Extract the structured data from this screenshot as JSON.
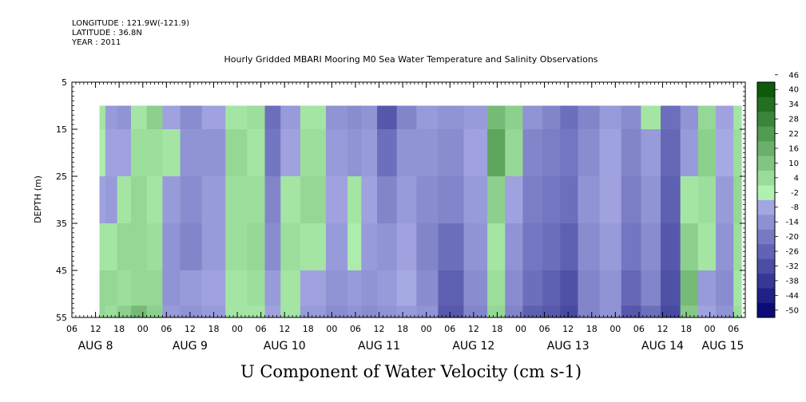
{
  "header": {
    "longitude": "LONGITUDE : 121.9W(-121.9)",
    "latitude": "LATITUDE : 36.8N",
    "year": "YEAR : 2011"
  },
  "title": "Hourly Gridded MBARI Mooring M0 Sea Water Temperature and Salinity Observations",
  "xlabel": "U Component of Water Velocity (cm s-1)",
  "colors": {
    "negative_deep": "#000070",
    "negative_light": "#b8bcf0",
    "positive_light": "#b0f0b0",
    "positive_deep": "#005000"
  },
  "chart_data": {
    "type": "heatmap",
    "variable": "U Component of Water Velocity",
    "units": "cm s-1",
    "ylabel": "DEPTH (m)",
    "y_axis": {
      "range": [
        5,
        55
      ],
      "reversed": true,
      "ticks": [
        5,
        15,
        25,
        35,
        45,
        55
      ],
      "data_depth_range": [
        10,
        55
      ]
    },
    "x_axis": {
      "start": "2011-08-08 06:00",
      "end": "2011-08-15 09:00",
      "data_start": "2011-08-08 13:00",
      "data_end": "2011-08-15 08:00",
      "hour_tick_labels": [
        "06",
        "12",
        "18",
        "00",
        "06",
        "12",
        "18",
        "00",
        "06",
        "12",
        "18",
        "00",
        "06",
        "12",
        "18",
        "00",
        "06",
        "12",
        "18",
        "00",
        "06",
        "12",
        "18",
        "00",
        "06",
        "12",
        "18",
        "00",
        "06"
      ],
      "day_labels": [
        {
          "label": "AUG  8",
          "date": "2011-08-08"
        },
        {
          "label": "AUG  9",
          "date": "2011-08-09"
        },
        {
          "label": "AUG 10",
          "date": "2011-08-10"
        },
        {
          "label": "AUG 11",
          "date": "2011-08-11"
        },
        {
          "label": "AUG 12",
          "date": "2011-08-12"
        },
        {
          "label": "AUG 13",
          "date": "2011-08-13"
        },
        {
          "label": "AUG 14",
          "date": "2011-08-14"
        },
        {
          "label": "AUG 15",
          "date": "2011-08-15"
        }
      ]
    },
    "colorbar": {
      "levels": [
        -50,
        -44,
        -38,
        -32,
        -26,
        -20,
        -14,
        -8,
        -2,
        4,
        10,
        16,
        22,
        28,
        34,
        40,
        46
      ],
      "label_ticks": [
        -50,
        -44,
        -38,
        -32,
        -26,
        -20,
        -14,
        -8,
        -2,
        4,
        10,
        16,
        22,
        28,
        34,
        40,
        46
      ]
    },
    "profile_times": [
      "2011-08-08 13:00",
      "2011-08-08 16:00",
      "2011-08-08 19:00",
      "2011-08-08 23:00",
      "2011-08-09 03:00",
      "2011-08-09 07:00",
      "2011-08-09 12:00",
      "2011-08-09 18:00",
      "2011-08-10 00:00",
      "2011-08-10 05:00",
      "2011-08-10 09:00",
      "2011-08-10 13:00",
      "2011-08-10 19:00",
      "2011-08-11 02:00",
      "2011-08-11 06:00",
      "2011-08-11 09:00",
      "2011-08-11 14:00",
      "2011-08-11 19:00",
      "2011-08-12 00:00",
      "2011-08-12 06:00",
      "2011-08-12 13:00",
      "2011-08-12 18:00",
      "2011-08-12 22:00",
      "2011-08-13 03:00",
      "2011-08-13 08:00",
      "2011-08-13 12:00",
      "2011-08-13 17:00",
      "2011-08-13 23:00",
      "2011-08-14 04:00",
      "2011-08-14 09:00",
      "2011-08-14 14:00",
      "2011-08-14 19:00",
      "2011-08-14 23:00",
      "2011-08-15 04:00",
      "2011-08-15 08:00"
    ],
    "profile_depths": [
      10,
      20,
      30,
      40,
      50,
      55
    ],
    "u_estimates": [
      [
        4,
        2,
        -6,
        4,
        8,
        8
      ],
      [
        -8,
        -6,
        -8,
        4,
        8,
        6
      ],
      [
        -10,
        -6,
        4,
        8,
        6,
        10
      ],
      [
        4,
        6,
        8,
        8,
        8,
        16
      ],
      [
        10,
        6,
        4,
        6,
        8,
        10
      ],
      [
        -6,
        4,
        -8,
        -10,
        -10,
        -8
      ],
      [
        -12,
        -10,
        -12,
        -14,
        -8,
        -10
      ],
      [
        -6,
        -10,
        -8,
        -8,
        -6,
        -8
      ],
      [
        4,
        8,
        6,
        6,
        4,
        4
      ],
      [
        6,
        4,
        6,
        8,
        6,
        4
      ],
      [
        -20,
        -18,
        -14,
        -12,
        -8,
        -6
      ],
      [
        -8,
        -6,
        4,
        6,
        4,
        4
      ],
      [
        4,
        6,
        8,
        4,
        -6,
        -8
      ],
      [
        -10,
        -8,
        -6,
        -8,
        -10,
        -12
      ],
      [
        -12,
        -10,
        4,
        2,
        -8,
        -10
      ],
      [
        -10,
        -8,
        -6,
        -8,
        -10,
        -12
      ],
      [
        -26,
        -20,
        -14,
        -10,
        -8,
        -10
      ],
      [
        -14,
        -10,
        -8,
        -6,
        -4,
        -8
      ],
      [
        -8,
        -10,
        -12,
        -14,
        -12,
        -10
      ],
      [
        -10,
        -12,
        -14,
        -20,
        -24,
        -26
      ],
      [
        -8,
        -6,
        -8,
        -10,
        -12,
        -14
      ],
      [
        16,
        22,
        10,
        4,
        6,
        8
      ],
      [
        10,
        8,
        -6,
        -10,
        -12,
        -14
      ],
      [
        -10,
        -14,
        -16,
        -18,
        -20,
        -24
      ],
      [
        -14,
        -16,
        -18,
        -20,
        -24,
        -26
      ],
      [
        -20,
        -18,
        -20,
        -24,
        -28,
        -30
      ],
      [
        -14,
        -12,
        -10,
        -12,
        -14,
        -14
      ],
      [
        -8,
        -6,
        -6,
        -8,
        -10,
        -10
      ],
      [
        -12,
        -14,
        -16,
        -18,
        -22,
        -26
      ],
      [
        4,
        -8,
        -10,
        -12,
        -14,
        -20
      ],
      [
        -20,
        -22,
        -24,
        -26,
        -28,
        -30
      ],
      [
        -10,
        -8,
        4,
        10,
        16,
        12
      ],
      [
        8,
        10,
        6,
        4,
        -8,
        -6
      ],
      [
        -6,
        -4,
        -8,
        -10,
        -12,
        -10
      ],
      [
        4,
        6,
        8,
        6,
        4,
        6
      ]
    ]
  }
}
